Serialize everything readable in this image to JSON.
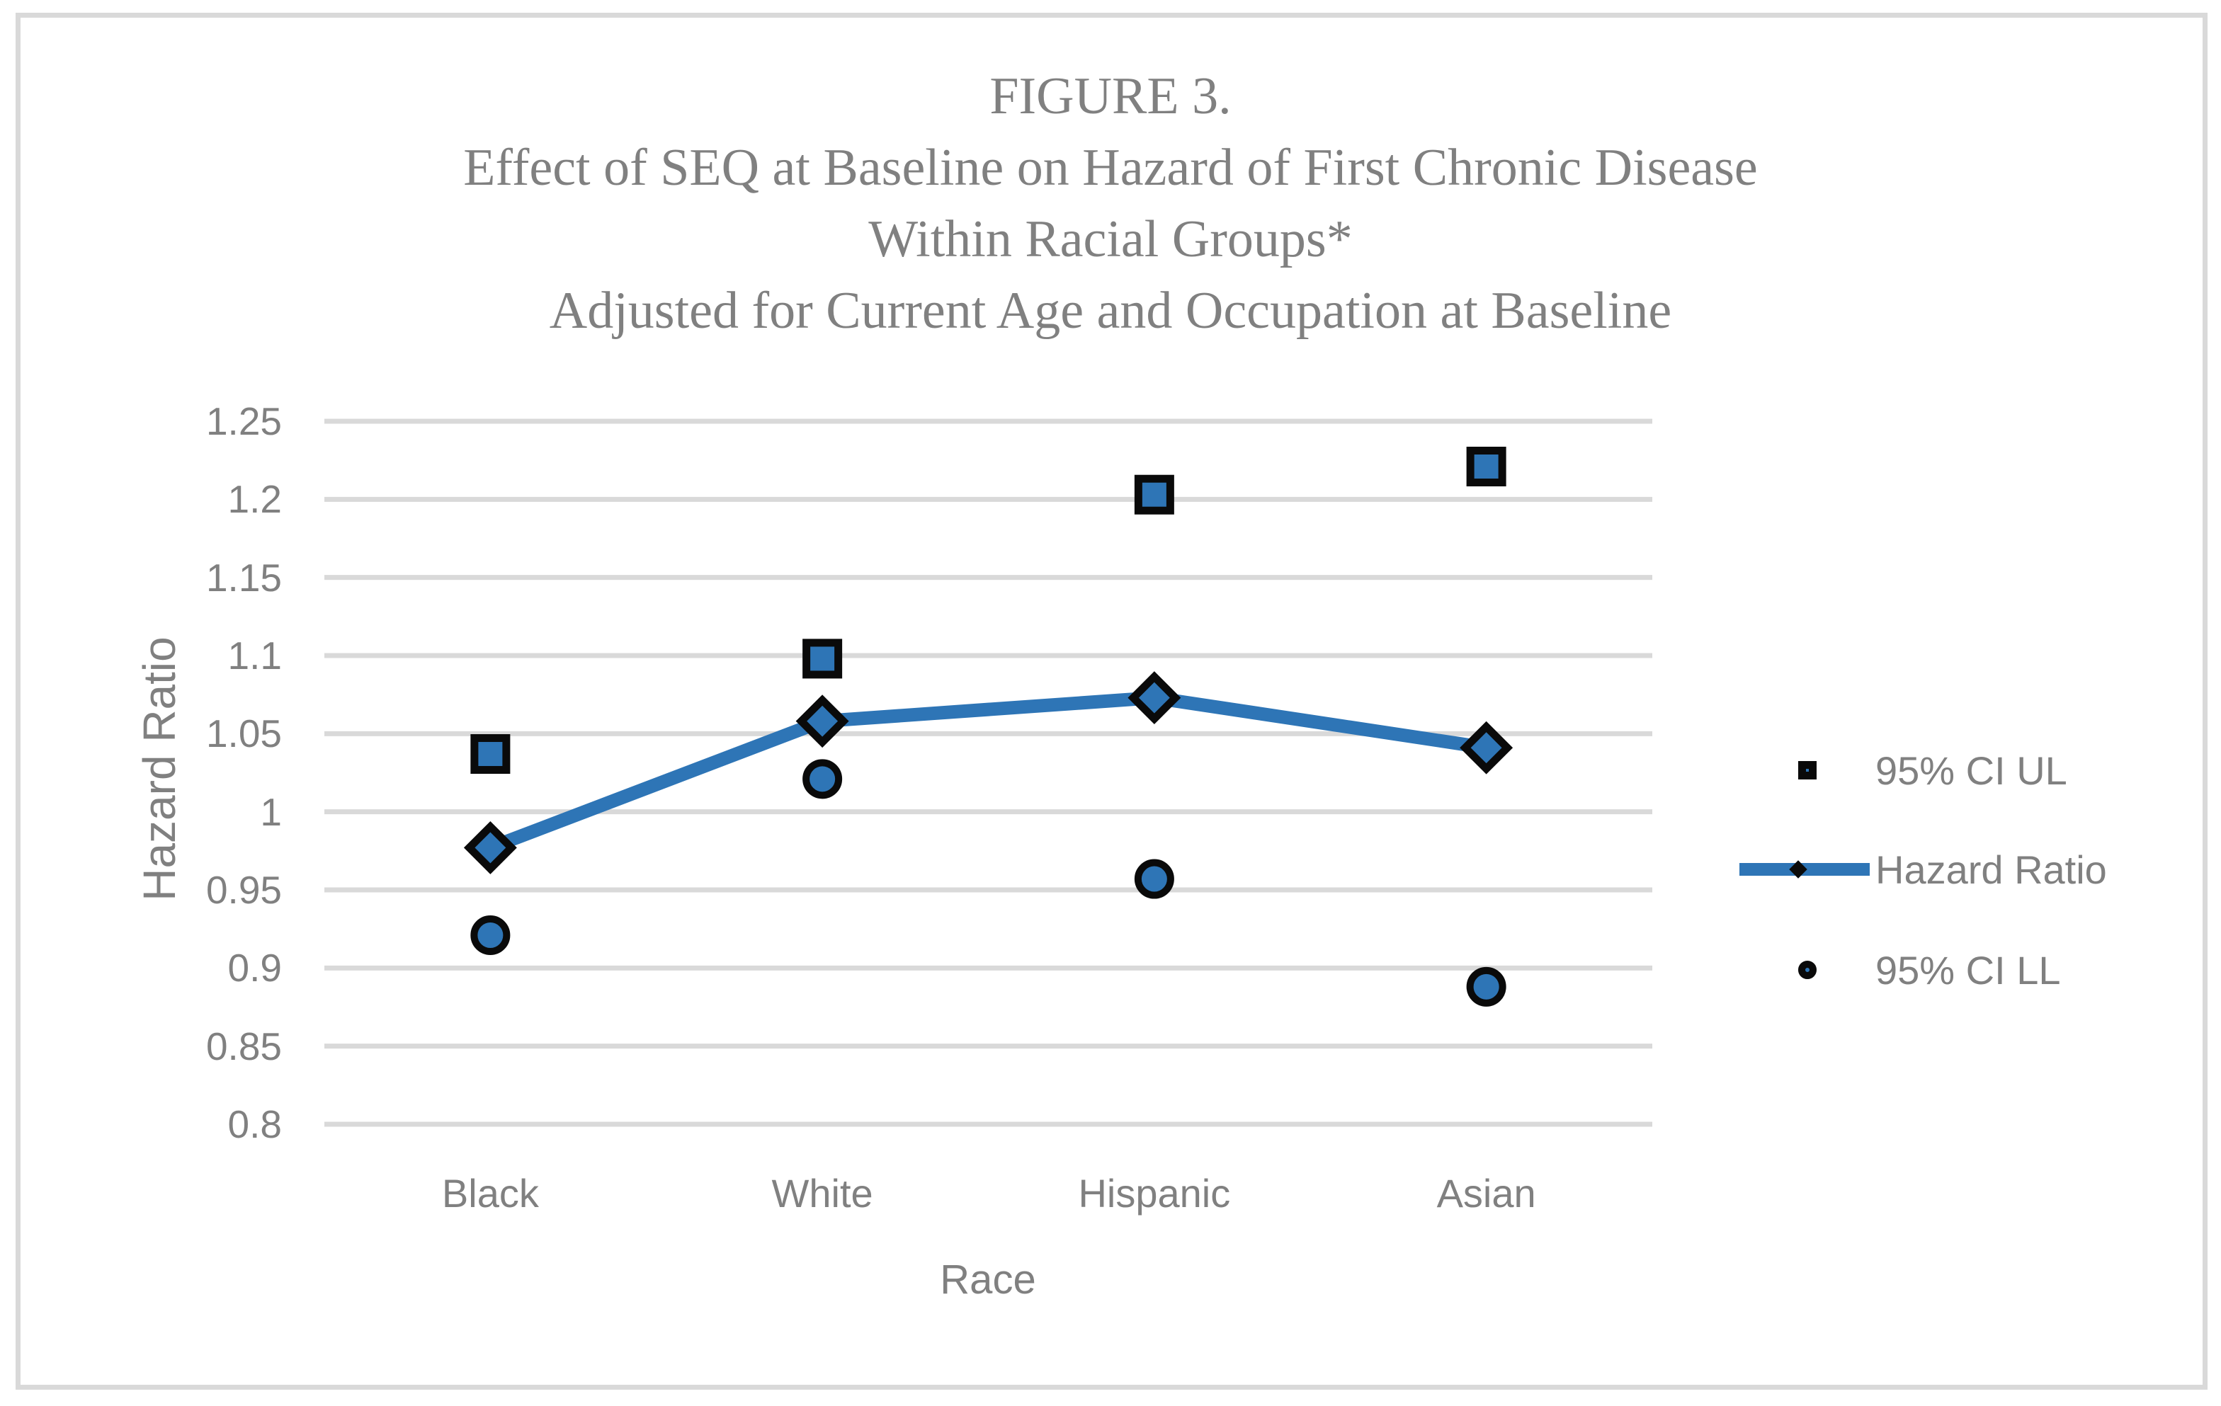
{
  "figure": {
    "title_lines": [
      "FIGURE 3.",
      "Effect of SEQ at Baseline on Hazard of First Chronic Disease",
      "Within Racial Groups*",
      "Adjusted for Current Age and Occupation at Baseline"
    ]
  },
  "chart_data": {
    "type": "line",
    "categories": [
      "Black",
      "White",
      "Hispanic",
      "Asian"
    ],
    "series": [
      {
        "name": "95% CI UL",
        "marker": "square",
        "line": false,
        "values": [
          1.037,
          1.098,
          1.203,
          1.221
        ]
      },
      {
        "name": "Hazard Ratio",
        "marker": "diamond",
        "line": true,
        "values": [
          0.977,
          1.058,
          1.073,
          1.041
        ]
      },
      {
        "name": "95% CI LL",
        "marker": "circle",
        "line": false,
        "values": [
          0.921,
          1.021,
          0.957,
          0.888
        ]
      }
    ],
    "xlabel": "Race",
    "ylabel": "Hazard Ratio",
    "ylim": [
      0.8,
      1.25
    ],
    "ytick_step": 0.05,
    "yticks_labels": [
      "1.25",
      "1.2",
      "1.15",
      "1.1",
      "1.05",
      "1",
      "0.95",
      "0.9",
      "0.85",
      "0.8"
    ],
    "grid": true,
    "legend_position": "right"
  },
  "colors": {
    "series_blue": "#2e75b6",
    "marker_outline": "#0a0a0a",
    "gridline": "#d9d9d9",
    "text_gray": "#808080",
    "border_gray": "#d9d9d9"
  }
}
